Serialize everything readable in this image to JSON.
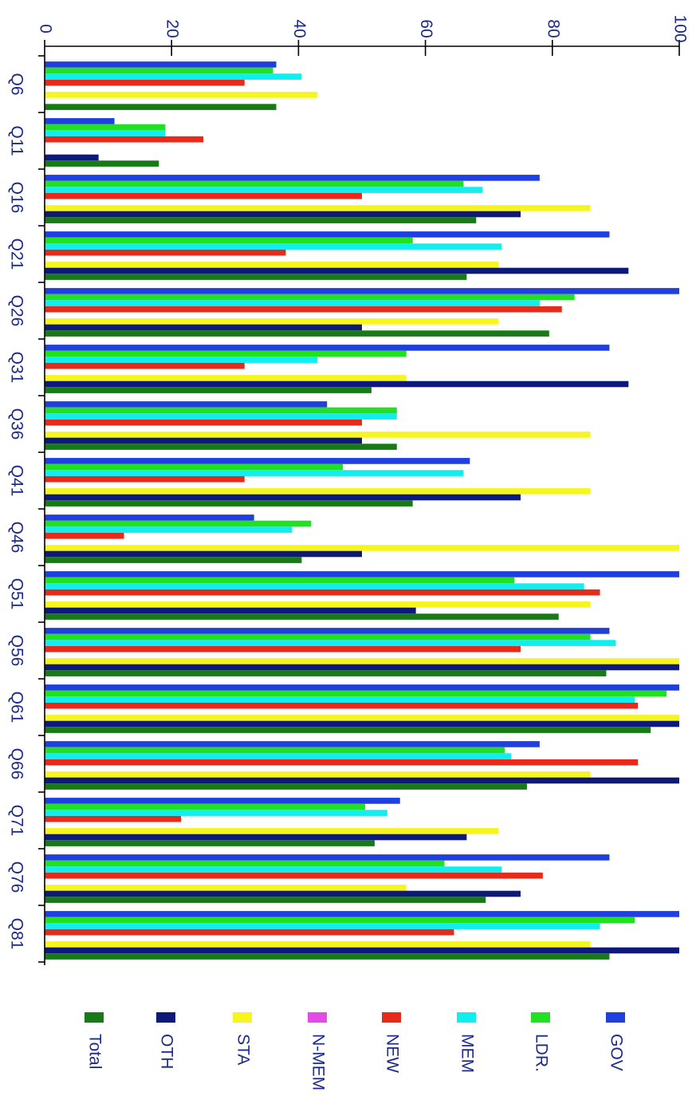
{
  "chart_data": {
    "type": "bar",
    "orientation": "horizontal",
    "rotation": "rotated 90 degrees clockwise",
    "title": "",
    "xlabel": "",
    "ylabel": "",
    "xlim": [
      0,
      100
    ],
    "x_ticks": [
      0,
      20,
      40,
      60,
      80,
      100
    ],
    "x_tick_labels": [
      "0",
      "20",
      "40",
      "60",
      "80",
      "100"
    ],
    "grid": false,
    "legend_position": "bottom",
    "categories": [
      "Q6",
      "Q11",
      "Q16",
      "Q21",
      "Q26",
      "Q31",
      "Q36",
      "Q41",
      "Q46",
      "Q51",
      "Q56",
      "Q61",
      "Q66",
      "Q71",
      "Q76",
      "Q81"
    ],
    "series": [
      {
        "name": "GOV",
        "color": "#1f3fe0",
        "values": [
          36.5,
          11,
          78,
          89,
          100,
          89,
          44.5,
          67,
          33,
          100,
          89,
          100,
          78,
          56,
          89,
          100
        ]
      },
      {
        "name": "LDR.",
        "color": "#22e022",
        "values": [
          36,
          19,
          66,
          58,
          83.5,
          57,
          55.5,
          47,
          42,
          74,
          86,
          98,
          72.5,
          50.5,
          63,
          93
        ]
      },
      {
        "name": "MEM",
        "color": "#11eef0",
        "values": [
          40.5,
          19,
          69,
          72,
          78,
          43,
          55.5,
          66,
          39,
          85,
          90,
          93,
          73.5,
          54,
          72,
          87.5
        ]
      },
      {
        "name": "NEW",
        "color": "#e82a1a",
        "values": [
          31.5,
          25,
          50,
          38,
          81.5,
          31.5,
          50,
          31.5,
          12.5,
          87.5,
          75,
          93.5,
          93.5,
          21.5,
          78.5,
          64.5
        ]
      },
      {
        "name": "N-MEM",
        "color": "#e64ae6",
        "values": [
          0,
          0,
          0,
          0,
          0,
          0,
          0,
          0,
          0,
          0,
          0,
          0,
          0,
          0,
          0,
          0
        ]
      },
      {
        "name": "STA",
        "color": "#f6f61e",
        "values": [
          43,
          0,
          86,
          71.5,
          71.5,
          57,
          86,
          86,
          100,
          86,
          100,
          100,
          86,
          71.5,
          57,
          86
        ]
      },
      {
        "name": "OTH",
        "color": "#0e1a7a",
        "values": [
          0,
          8.5,
          75,
          92,
          50,
          92,
          50,
          75,
          50,
          58.5,
          100,
          100,
          100,
          66.5,
          75,
          100
        ]
      },
      {
        "name": "Total",
        "color": "#177a17",
        "values": [
          36.5,
          18,
          68,
          66.5,
          79.5,
          51.5,
          55.5,
          58,
          40.5,
          81,
          88.5,
          95.5,
          76,
          52,
          69.5,
          89
        ]
      }
    ]
  }
}
